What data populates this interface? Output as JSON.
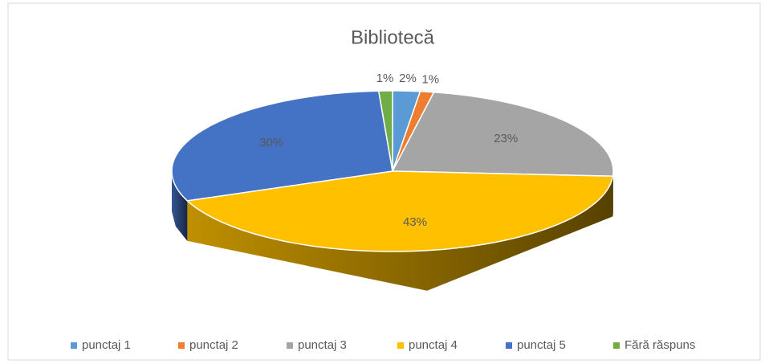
{
  "chart_data": {
    "type": "pie3d",
    "title": "Bibliotecă",
    "categories": [
      "punctaj 1",
      "punctaj 2",
      "punctaj 3",
      "punctaj 4",
      "punctaj 5",
      "Fără răspuns"
    ],
    "values": [
      2,
      1,
      23,
      43,
      30,
      1
    ],
    "value_labels": [
      "2%",
      "1%",
      "23%",
      "43%",
      "30%",
      "1%"
    ],
    "colors": [
      "#5b9bd5",
      "#ed7d31",
      "#a5a5a5",
      "#ffc000",
      "#4472c4",
      "#70ad47"
    ],
    "legend": "bottom"
  }
}
